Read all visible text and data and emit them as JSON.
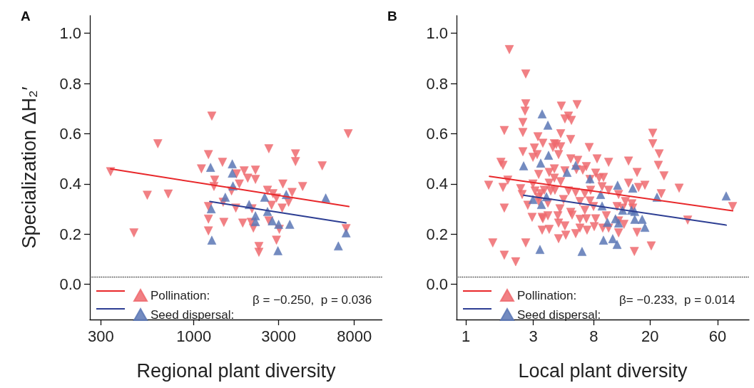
{
  "chart_data": [
    {
      "type": "scatter",
      "title": "A",
      "xlabel": "Regional plant diversity",
      "ylabel": "Specialization ΔH₂′",
      "log": "x",
      "grid": false,
      "legend": "bottom left",
      "xlim": [
        260,
        11500
      ],
      "ylim": [
        -0.14,
        1.07
      ],
      "xticks": [
        300,
        1000,
        3000,
        8000
      ],
      "yticks": [
        {
          "value": 0,
          "label": "0.0"
        },
        {
          "value": 0.2,
          "label": "0.2"
        },
        {
          "value": 0.4,
          "label": "0.4"
        },
        {
          "value": 0.6,
          "label": "0.6"
        },
        {
          "value": 0.8,
          "label": "0.8"
        },
        {
          "value": 1,
          "label": "1.0"
        }
      ],
      "ref_lines": [
        {
          "axis": "y",
          "value": 0.03,
          "line_style": "dotted",
          "color": "#333333"
        }
      ],
      "annotations": [
        "β = −0.250,  p = 0.036"
      ],
      "series": [
        {
          "name": "Pollination:",
          "marker": "triangle",
          "color": "#ee6a6e",
          "x": [
            340,
            460,
            547,
            627,
            718,
            1262,
            1208,
            1103,
            1449,
            1310,
            1298,
            1208,
            1208,
            1208,
            1475,
            1462,
            1722,
            1630,
            1803,
            1738,
            1919,
            2010,
            2222,
            2222,
            1884,
            2103,
            2162,
            2125,
            2643,
            2597,
            2787,
            2643,
            2737,
            2917,
            3169,
            3141,
            3412,
            3573,
            3027,
            2917,
            2323,
            2323,
            3733,
            3733,
            4093,
            5277,
            7390,
            7190
          ],
          "values": [
            0.449,
            0.205,
            0.355,
            0.56,
            0.36,
            0.67,
            0.517,
            0.46,
            0.486,
            0.415,
            0.39,
            0.31,
            0.26,
            0.213,
            0.247,
            0.327,
            0.304,
            0.372,
            0.4,
            0.44,
            0.452,
            0.423,
            0.455,
            0.418,
            0.244,
            0.247,
            0.224,
            0.301,
            0.54,
            0.375,
            0.361,
            0.253,
            0.315,
            0.344,
            0.4,
            0.304,
            0.327,
            0.366,
            0.219,
            0.176,
            0.151,
            0.128,
            0.52,
            0.489,
            0.39,
            0.472,
            0.6,
            0.222
          ]
        },
        {
          "name": "Seed dispersal:",
          "marker": "triangle",
          "color": "#5b77b5",
          "x": [
            1242,
            1645,
            1645,
            1660,
            1503,
            1253,
            1262,
            2047,
            2222,
            2222,
            2502,
            2597,
            2761,
            3000,
            3467,
            3311,
            2972,
            5521,
            6501,
            7190
          ],
          "values": [
            0.466,
            0.48,
            0.443,
            0.392,
            0.347,
            0.301,
            0.176,
            0.318,
            0.273,
            0.25,
            0.347,
            0.29,
            0.253,
            0.239,
            0.239,
            0.358,
            0.134,
            0.344,
            0.153,
            0.205
          ]
        },
        {
          "type": "line",
          "marker": "none",
          "color": "#e8282b",
          "x": [
            340,
            7450
          ],
          "values": [
            0.46,
            0.31
          ]
        },
        {
          "type": "line",
          "marker": "none",
          "color": "#2d3e93",
          "x": [
            1230,
            7180
          ],
          "values": [
            0.33,
            0.245
          ]
        }
      ]
    },
    {
      "type": "scatter",
      "title": "B",
      "xlabel": "Local plant diversity",
      "log": "x",
      "grid": false,
      "legend": "bottom left",
      "xlim": [
        0.86,
        100
      ],
      "ylim": [
        -0.14,
        1.07
      ],
      "xticks": [
        1,
        3,
        8,
        20,
        60
      ],
      "yticks": [
        {
          "value": 0,
          "label": "0.0"
        },
        {
          "value": 0.2,
          "label": "0.2"
        },
        {
          "value": 0.4,
          "label": "0.4"
        },
        {
          "value": 0.6,
          "label": "0.6"
        },
        {
          "value": 0.8,
          "label": "0.8"
        },
        {
          "value": 1,
          "label": "1.0"
        }
      ],
      "ref_lines": [
        {
          "axis": "y",
          "value": 0.03,
          "line_style": "dotted",
          "color": "#333333"
        }
      ],
      "annotations": [
        "β= −0.233,  p = 0.014"
      ],
      "series": [
        {
          "name": "Pollination:",
          "marker": "triangle",
          "color": "#ee6a6e",
          "x": [
            2.03,
            2.65,
            2.65,
            2.62,
            2.53,
            1.87,
            2.53,
            4.73,
            6.11,
            5.31,
            5.57,
            5.01,
            4.68,
            5.5,
            3.23,
            3.5,
            4.22,
            4.68,
            3.05,
            2.53,
            3.19,
            4.52,
            7.44,
            1.77,
            1.83,
            1.45,
            1.83,
            1.98,
            2.44,
            2.5,
            1.87,
            1.55,
            1.87,
            2.25,
            2.65,
            2.94,
            3.46,
            2.74,
            3.27,
            3.8,
            3.5,
            3.8,
            3.46,
            3.88,
            4.47,
            4.52,
            5.01,
            4.52,
            5.08,
            5.97,
            5.63,
            6.4,
            7.1,
            6.4,
            7.18,
            8.07,
            9.27,
            10.2,
            8.26,
            9.82,
            12,
            13.1,
            16.2,
            15.5,
            20.4,
            36.9,
            76.6,
            32.1,
            25.1,
            24,
            22.9,
            23.2,
            20.9,
            20.9,
            16.2,
            18.4,
            16.6,
            14.1,
            14.1,
            13.4,
            14.9,
            15.1,
            10.2,
            8.45,
            9.38,
            8.26,
            7.61,
            6.93,
            6.18,
            5.51,
            7.1,
            6.7,
            5.01,
            4.22,
            3.88,
            3.27,
            4.22,
            4.68,
            3.88,
            3.58,
            4.26,
            5.31,
            5.97,
            4.9,
            6.4,
            7.53,
            5.51,
            4.62,
            6.93,
            7.98,
            9.17,
            12,
            11.7,
            12.8,
            12,
            10.2,
            8.75,
            7.53,
            6.04,
            2.98,
            3.08,
            3.38,
            3.98,
            3.27,
            2.98,
            4.12,
            4.36
          ],
          "values": [
            0.935,
            0.838,
            0.719,
            0.69,
            0.645,
            0.613,
            0.605,
            0.71,
            0.716,
            0.67,
            0.653,
            0.659,
            0.6,
            0.577,
            0.588,
            0.562,
            0.56,
            0.548,
            0.543,
            0.528,
            0.517,
            0.517,
            0.545,
            0.486,
            0.474,
            0.395,
            0.386,
            0.415,
            0.381,
            0.358,
            0.304,
            0.165,
            0.116,
            0.09,
            0.165,
            0.267,
            0.267,
            0.315,
            0.347,
            0.324,
            0.261,
            0.273,
            0.216,
            0.219,
            0.273,
            0.244,
            0.233,
            0.182,
            0.196,
            0.202,
            0.276,
            0.259,
            0.261,
            0.224,
            0.216,
            0.23,
            0.224,
            0.224,
            0.261,
            0.273,
            0.205,
            0.239,
            0.207,
            0.131,
            0.153,
            0.256,
            0.31,
            0.383,
            0.432,
            0.361,
            0.474,
            0.52,
            0.56,
            0.602,
            0.446,
            0.395,
            0.386,
            0.491,
            0.403,
            0.33,
            0.321,
            0.304,
            0.486,
            0.5,
            0.426,
            0.443,
            0.375,
            0.361,
            0.494,
            0.5,
            0.469,
            0.455,
            0.452,
            0.46,
            0.446,
            0.438,
            0.423,
            0.409,
            0.403,
            0.375,
            0.375,
            0.372,
            0.366,
            0.338,
            0.33,
            0.332,
            0.287,
            0.301,
            0.295,
            0.31,
            0.389,
            0.358,
            0.31,
            0.304,
            0.253,
            0.375,
            0.423,
            0.418,
            0.457,
            0.4,
            0.372,
            0.361,
            0.372,
            0.33,
            0.506,
            0.545,
            0.557
          ]
        },
        {
          "name": "Seed dispersal:",
          "marker": "triangle",
          "color": "#5b77b5",
          "x": [
            3.46,
            3.8,
            2.56,
            3.84,
            3.38,
            5.97,
            5.19,
            7.53,
            8.96,
            11.8,
            15.1,
            22.4,
            69,
            3.71,
            2.98,
            3.42,
            9.17,
            12.8,
            14.8,
            15.6,
            11.4,
            10,
            12,
            15.6,
            17.6,
            18.4,
            9.38,
            10.9,
            11.7,
            3.34,
            6.62
          ],
          "values": [
            0.679,
            0.634,
            0.472,
            0.514,
            0.483,
            0.474,
            0.446,
            0.42,
            0.358,
            0.395,
            0.383,
            0.347,
            0.352,
            0.349,
            0.338,
            0.318,
            0.312,
            0.295,
            0.295,
            0.29,
            0.261,
            0.247,
            0.244,
            0.259,
            0.259,
            0.227,
            0.176,
            0.182,
            0.159,
            0.139,
            0.131
          ]
        },
        {
          "type": "line",
          "marker": "none",
          "color": "#e8282b",
          "x": [
            1.47,
            76.6
          ],
          "values": [
            0.43,
            0.293
          ]
        },
        {
          "type": "line",
          "marker": "none",
          "color": "#2d3e93",
          "x": [
            2.56,
            69
          ],
          "values": [
            0.355,
            0.236
          ]
        }
      ]
    }
  ]
}
